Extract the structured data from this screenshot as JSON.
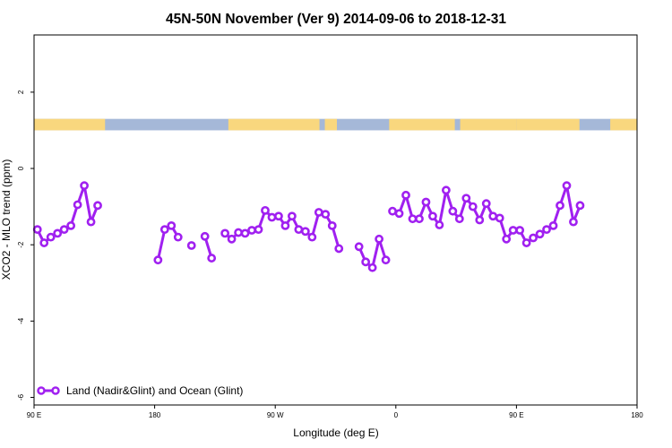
{
  "chart_data": {
    "type": "line",
    "title": "45N-50N November (Ver 9)   2014-09-06 to 2018-12-31",
    "xlabel": "Longitude (deg E)",
    "ylabel": "XCO2 - MLO trend (ppm)",
    "xlim": [
      90,
      540
    ],
    "ylim": [
      -6.2,
      3.5
    ],
    "x_ticks": [
      {
        "value": 90,
        "label": "90 E"
      },
      {
        "value": 180,
        "label": "180"
      },
      {
        "value": 270,
        "label": "90 W"
      },
      {
        "value": 360,
        "label": "0"
      },
      {
        "value": 450,
        "label": "90 E"
      },
      {
        "value": 540,
        "label": "180"
      }
    ],
    "y_ticks": [
      {
        "value": -6,
        "label": "-6"
      },
      {
        "value": -4,
        "label": "-4"
      },
      {
        "value": -2,
        "label": "-2"
      },
      {
        "value": 0,
        "label": "0"
      },
      {
        "value": 2,
        "label": "2"
      }
    ],
    "land_ocean_strip": {
      "y_range": [
        1.0,
        1.3
      ],
      "ocean_color": "#a5b8d8",
      "land_color": "#f9d77e",
      "land_segments": [
        [
          90,
          143
        ],
        [
          235,
          303
        ],
        [
          307,
          316
        ],
        [
          355,
          404
        ],
        [
          408,
          450
        ],
        [
          450,
          497
        ],
        [
          520,
          540
        ]
      ]
    },
    "series": [
      {
        "name": "Land (Nadir&Glint) and Ocean (Glint)",
        "color": "#a020f0",
        "segments": [
          {
            "x": [
              92.5,
              97.5,
              102.5,
              107.5,
              112.5,
              117.5,
              122.5,
              127.5,
              132.5,
              137.5
            ],
            "y": [
              -1.6,
              -1.95,
              -1.8,
              -1.7,
              -1.6,
              -1.5,
              -0.95,
              -0.45,
              -1.4,
              -0.97
            ]
          },
          {
            "x": [
              182.5,
              187.5,
              192.5,
              197.5
            ],
            "y": [
              -2.4,
              -1.6,
              -1.5,
              -1.8
            ]
          },
          {
            "x": [
              207.5
            ],
            "y": [
              -2.02
            ]
          },
          {
            "x": [
              217.5,
              222.5
            ],
            "y": [
              -1.78,
              -2.35
            ]
          },
          {
            "x": [
              232.5,
              237.5,
              242.5,
              247.5,
              252.5,
              257.5,
              262.5,
              267.5,
              272.5,
              277.5,
              282.5,
              287.5,
              292.5,
              297.5,
              302.5,
              307.5,
              312.5,
              317.5,
              322.5
            ],
            "y": [
              -1.7,
              -1.85,
              -1.68,
              -1.7,
              -1.62,
              -1.6,
              -1.1,
              -1.28,
              -1.25,
              -1.5,
              -1.25,
              -1.6,
              -1.65,
              -1.8,
              -1.15,
              -1.2,
              -1.5,
              -2.1,
              null
            ]
          },
          {
            "x": [
              332.5,
              337.5,
              342.5,
              347.5,
              352.5
            ],
            "y": [
              -2.05,
              -2.45,
              -2.6,
              -1.85,
              -2.4
            ]
          },
          {
            "x": [
              357.5,
              362.5,
              367.5,
              372.5,
              377.5,
              382.5,
              387.5,
              392.5,
              397.5,
              402.5,
              407.5,
              412.5,
              417.5,
              422.5,
              427.5,
              432.5,
              437.5,
              442.5,
              447.5,
              452.5,
              457.5,
              462.5,
              467.5,
              472.5,
              477.5,
              482.5,
              487.5,
              492.5,
              497.5,
              502.5,
              507.5
            ],
            "y": [
              -1.12,
              -1.18,
              -0.7,
              -1.32,
              -1.32,
              -0.88,
              -1.25,
              -1.48,
              -0.57,
              -1.12,
              -1.32,
              -0.78,
              -1.0,
              -1.35,
              -0.92,
              -1.25,
              -1.3,
              -1.85,
              -1.62,
              -1.62,
              -1.95,
              -1.82,
              -1.72,
              -1.6,
              -1.5,
              -0.97,
              -0.45,
              -1.4,
              -0.97,
              null,
              null
            ]
          }
        ]
      }
    ],
    "legend": {
      "position": "bottom-left"
    }
  }
}
